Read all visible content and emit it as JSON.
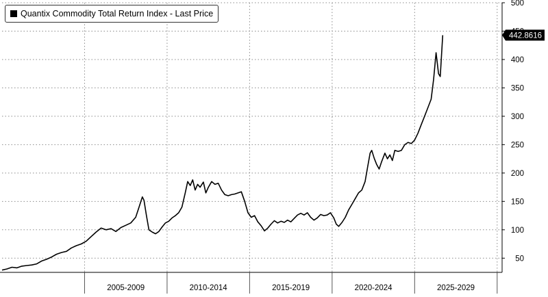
{
  "chart_data": {
    "type": "line",
    "legend": {
      "label": "Quantix Commodity Total Return Index - Last Price",
      "placement": "top-left"
    },
    "last_price_label": "442.8616",
    "series": [
      {
        "name": "Quantix Commodity Total Return Index - Last Price",
        "color": "#000000",
        "points": [
          [
            2000.0,
            29
          ],
          [
            2000.3,
            31
          ],
          [
            2000.6,
            34
          ],
          [
            2000.9,
            33
          ],
          [
            2001.2,
            36
          ],
          [
            2001.5,
            37
          ],
          [
            2001.8,
            38
          ],
          [
            2002.1,
            40
          ],
          [
            2002.4,
            45
          ],
          [
            2002.7,
            48
          ],
          [
            2003.0,
            52
          ],
          [
            2003.3,
            57
          ],
          [
            2003.6,
            60
          ],
          [
            2003.9,
            62
          ],
          [
            2004.2,
            68
          ],
          [
            2004.5,
            72
          ],
          [
            2004.8,
            75
          ],
          [
            2005.1,
            80
          ],
          [
            2005.4,
            88
          ],
          [
            2005.7,
            96
          ],
          [
            2006.0,
            103
          ],
          [
            2006.3,
            100
          ],
          [
            2006.6,
            102
          ],
          [
            2006.9,
            97
          ],
          [
            2007.2,
            104
          ],
          [
            2007.5,
            108
          ],
          [
            2007.8,
            112
          ],
          [
            2008.1,
            122
          ],
          [
            2008.3,
            140
          ],
          [
            2008.5,
            158
          ],
          [
            2008.6,
            152
          ],
          [
            2008.75,
            125
          ],
          [
            2008.9,
            100
          ],
          [
            2009.1,
            96
          ],
          [
            2009.3,
            93
          ],
          [
            2009.5,
            97
          ],
          [
            2009.7,
            105
          ],
          [
            2009.9,
            112
          ],
          [
            2010.1,
            115
          ],
          [
            2010.3,
            121
          ],
          [
            2010.5,
            125
          ],
          [
            2010.7,
            130
          ],
          [
            2010.9,
            140
          ],
          [
            2011.1,
            165
          ],
          [
            2011.25,
            185
          ],
          [
            2011.4,
            178
          ],
          [
            2011.55,
            188
          ],
          [
            2011.7,
            170
          ],
          [
            2011.85,
            180
          ],
          [
            2012.0,
            175
          ],
          [
            2012.2,
            184
          ],
          [
            2012.35,
            165
          ],
          [
            2012.5,
            175
          ],
          [
            2012.7,
            185
          ],
          [
            2012.9,
            180
          ],
          [
            2013.1,
            182
          ],
          [
            2013.3,
            170
          ],
          [
            2013.5,
            162
          ],
          [
            2013.7,
            160
          ],
          [
            2013.9,
            162
          ],
          [
            2014.1,
            163
          ],
          [
            2014.3,
            165
          ],
          [
            2014.5,
            167
          ],
          [
            2014.7,
            150
          ],
          [
            2014.9,
            130
          ],
          [
            2015.1,
            122
          ],
          [
            2015.3,
            125
          ],
          [
            2015.5,
            114
          ],
          [
            2015.7,
            107
          ],
          [
            2015.9,
            98
          ],
          [
            2016.1,
            103
          ],
          [
            2016.3,
            110
          ],
          [
            2016.5,
            116
          ],
          [
            2016.7,
            112
          ],
          [
            2016.9,
            115
          ],
          [
            2017.1,
            113
          ],
          [
            2017.3,
            117
          ],
          [
            2017.5,
            114
          ],
          [
            2017.7,
            120
          ],
          [
            2017.9,
            126
          ],
          [
            2018.1,
            129
          ],
          [
            2018.3,
            126
          ],
          [
            2018.5,
            130
          ],
          [
            2018.7,
            122
          ],
          [
            2018.9,
            117
          ],
          [
            2019.1,
            121
          ],
          [
            2019.3,
            127
          ],
          [
            2019.5,
            125
          ],
          [
            2019.7,
            126
          ],
          [
            2019.9,
            130
          ],
          [
            2020.1,
            121
          ],
          [
            2020.25,
            110
          ],
          [
            2020.4,
            106
          ],
          [
            2020.6,
            113
          ],
          [
            2020.8,
            122
          ],
          [
            2021.0,
            135
          ],
          [
            2021.2,
            145
          ],
          [
            2021.4,
            155
          ],
          [
            2021.6,
            165
          ],
          [
            2021.8,
            170
          ],
          [
            2022.0,
            185
          ],
          [
            2022.15,
            210
          ],
          [
            2022.3,
            235
          ],
          [
            2022.4,
            240
          ],
          [
            2022.55,
            226
          ],
          [
            2022.7,
            215
          ],
          [
            2022.85,
            207
          ],
          [
            2023.0,
            220
          ],
          [
            2023.2,
            235
          ],
          [
            2023.35,
            225
          ],
          [
            2023.5,
            232
          ],
          [
            2023.65,
            222
          ],
          [
            2023.8,
            240
          ],
          [
            2024.0,
            238
          ],
          [
            2024.2,
            240
          ],
          [
            2024.4,
            250
          ],
          [
            2024.6,
            254
          ],
          [
            2024.8,
            252
          ],
          [
            2025.0,
            258
          ],
          [
            2025.2,
            270
          ],
          [
            2025.4,
            285
          ],
          [
            2025.6,
            300
          ],
          [
            2025.8,
            315
          ],
          [
            2026.0,
            330
          ],
          [
            2026.15,
            365
          ],
          [
            2026.3,
            412
          ],
          [
            2026.45,
            375
          ],
          [
            2026.55,
            370
          ],
          [
            2026.7,
            442.86
          ]
        ]
      }
    ],
    "x_axis": {
      "range": [
        2000.0,
        2030.3
      ],
      "tick_labels": [
        {
          "label": "2005-2009",
          "center": 2007.5
        },
        {
          "label": "2010-2014",
          "center": 2012.5
        },
        {
          "label": "2015-2019",
          "center": 2017.5
        },
        {
          "label": "2020-2024",
          "center": 2022.5
        },
        {
          "label": "2025-2029",
          "center": 2027.5
        }
      ],
      "separators": [
        2005,
        2010,
        2015,
        2020,
        2025,
        2030
      ]
    },
    "y_axis": {
      "range": [
        25,
        500
      ],
      "ticks": [
        50,
        100,
        150,
        200,
        250,
        300,
        350,
        400,
        450,
        500
      ],
      "tick_labels": [
        "50",
        "100",
        "150",
        "200",
        "250",
        "300",
        "350",
        "400",
        "450",
        "500"
      ],
      "side": "right"
    },
    "grid": true
  }
}
